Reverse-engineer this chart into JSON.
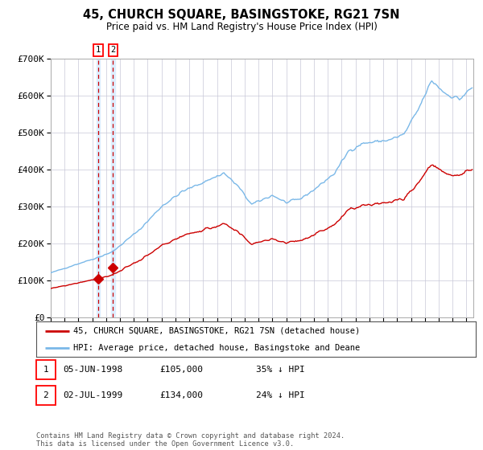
{
  "title": "45, CHURCH SQUARE, BASINGSTOKE, RG21 7SN",
  "subtitle": "Price paid vs. HM Land Registry's House Price Index (HPI)",
  "legend1": "45, CHURCH SQUARE, BASINGSTOKE, RG21 7SN (detached house)",
  "legend2": "HPI: Average price, detached house, Basingstoke and Deane",
  "table_rows": [
    {
      "num": "1",
      "date": "05-JUN-1998",
      "price": "£105,000",
      "pct": "35% ↓ HPI"
    },
    {
      "num": "2",
      "date": "02-JUL-1999",
      "price": "£134,000",
      "pct": "24% ↓ HPI"
    }
  ],
  "footnote": "Contains HM Land Registry data © Crown copyright and database right 2024.\nThis data is licensed under the Open Government Licence v3.0.",
  "sale1_date": 1998.42,
  "sale1_price": 105000,
  "sale2_date": 1999.5,
  "sale2_price": 134000,
  "hpi_color": "#7ab8e8",
  "price_color": "#cc0000",
  "vline_color": "#cc0000",
  "vband_color": "#ddeeff",
  "background_color": "#ffffff",
  "grid_color": "#c8c8d8",
  "ylim": [
    0,
    700000
  ],
  "yticks": [
    0,
    100000,
    200000,
    300000,
    400000,
    500000,
    600000,
    700000
  ],
  "ytick_labels": [
    "£0",
    "£100K",
    "£200K",
    "£300K",
    "£400K",
    "£500K",
    "£600K",
    "£700K"
  ],
  "xlim_start": 1995.0,
  "xlim_end": 2025.5
}
